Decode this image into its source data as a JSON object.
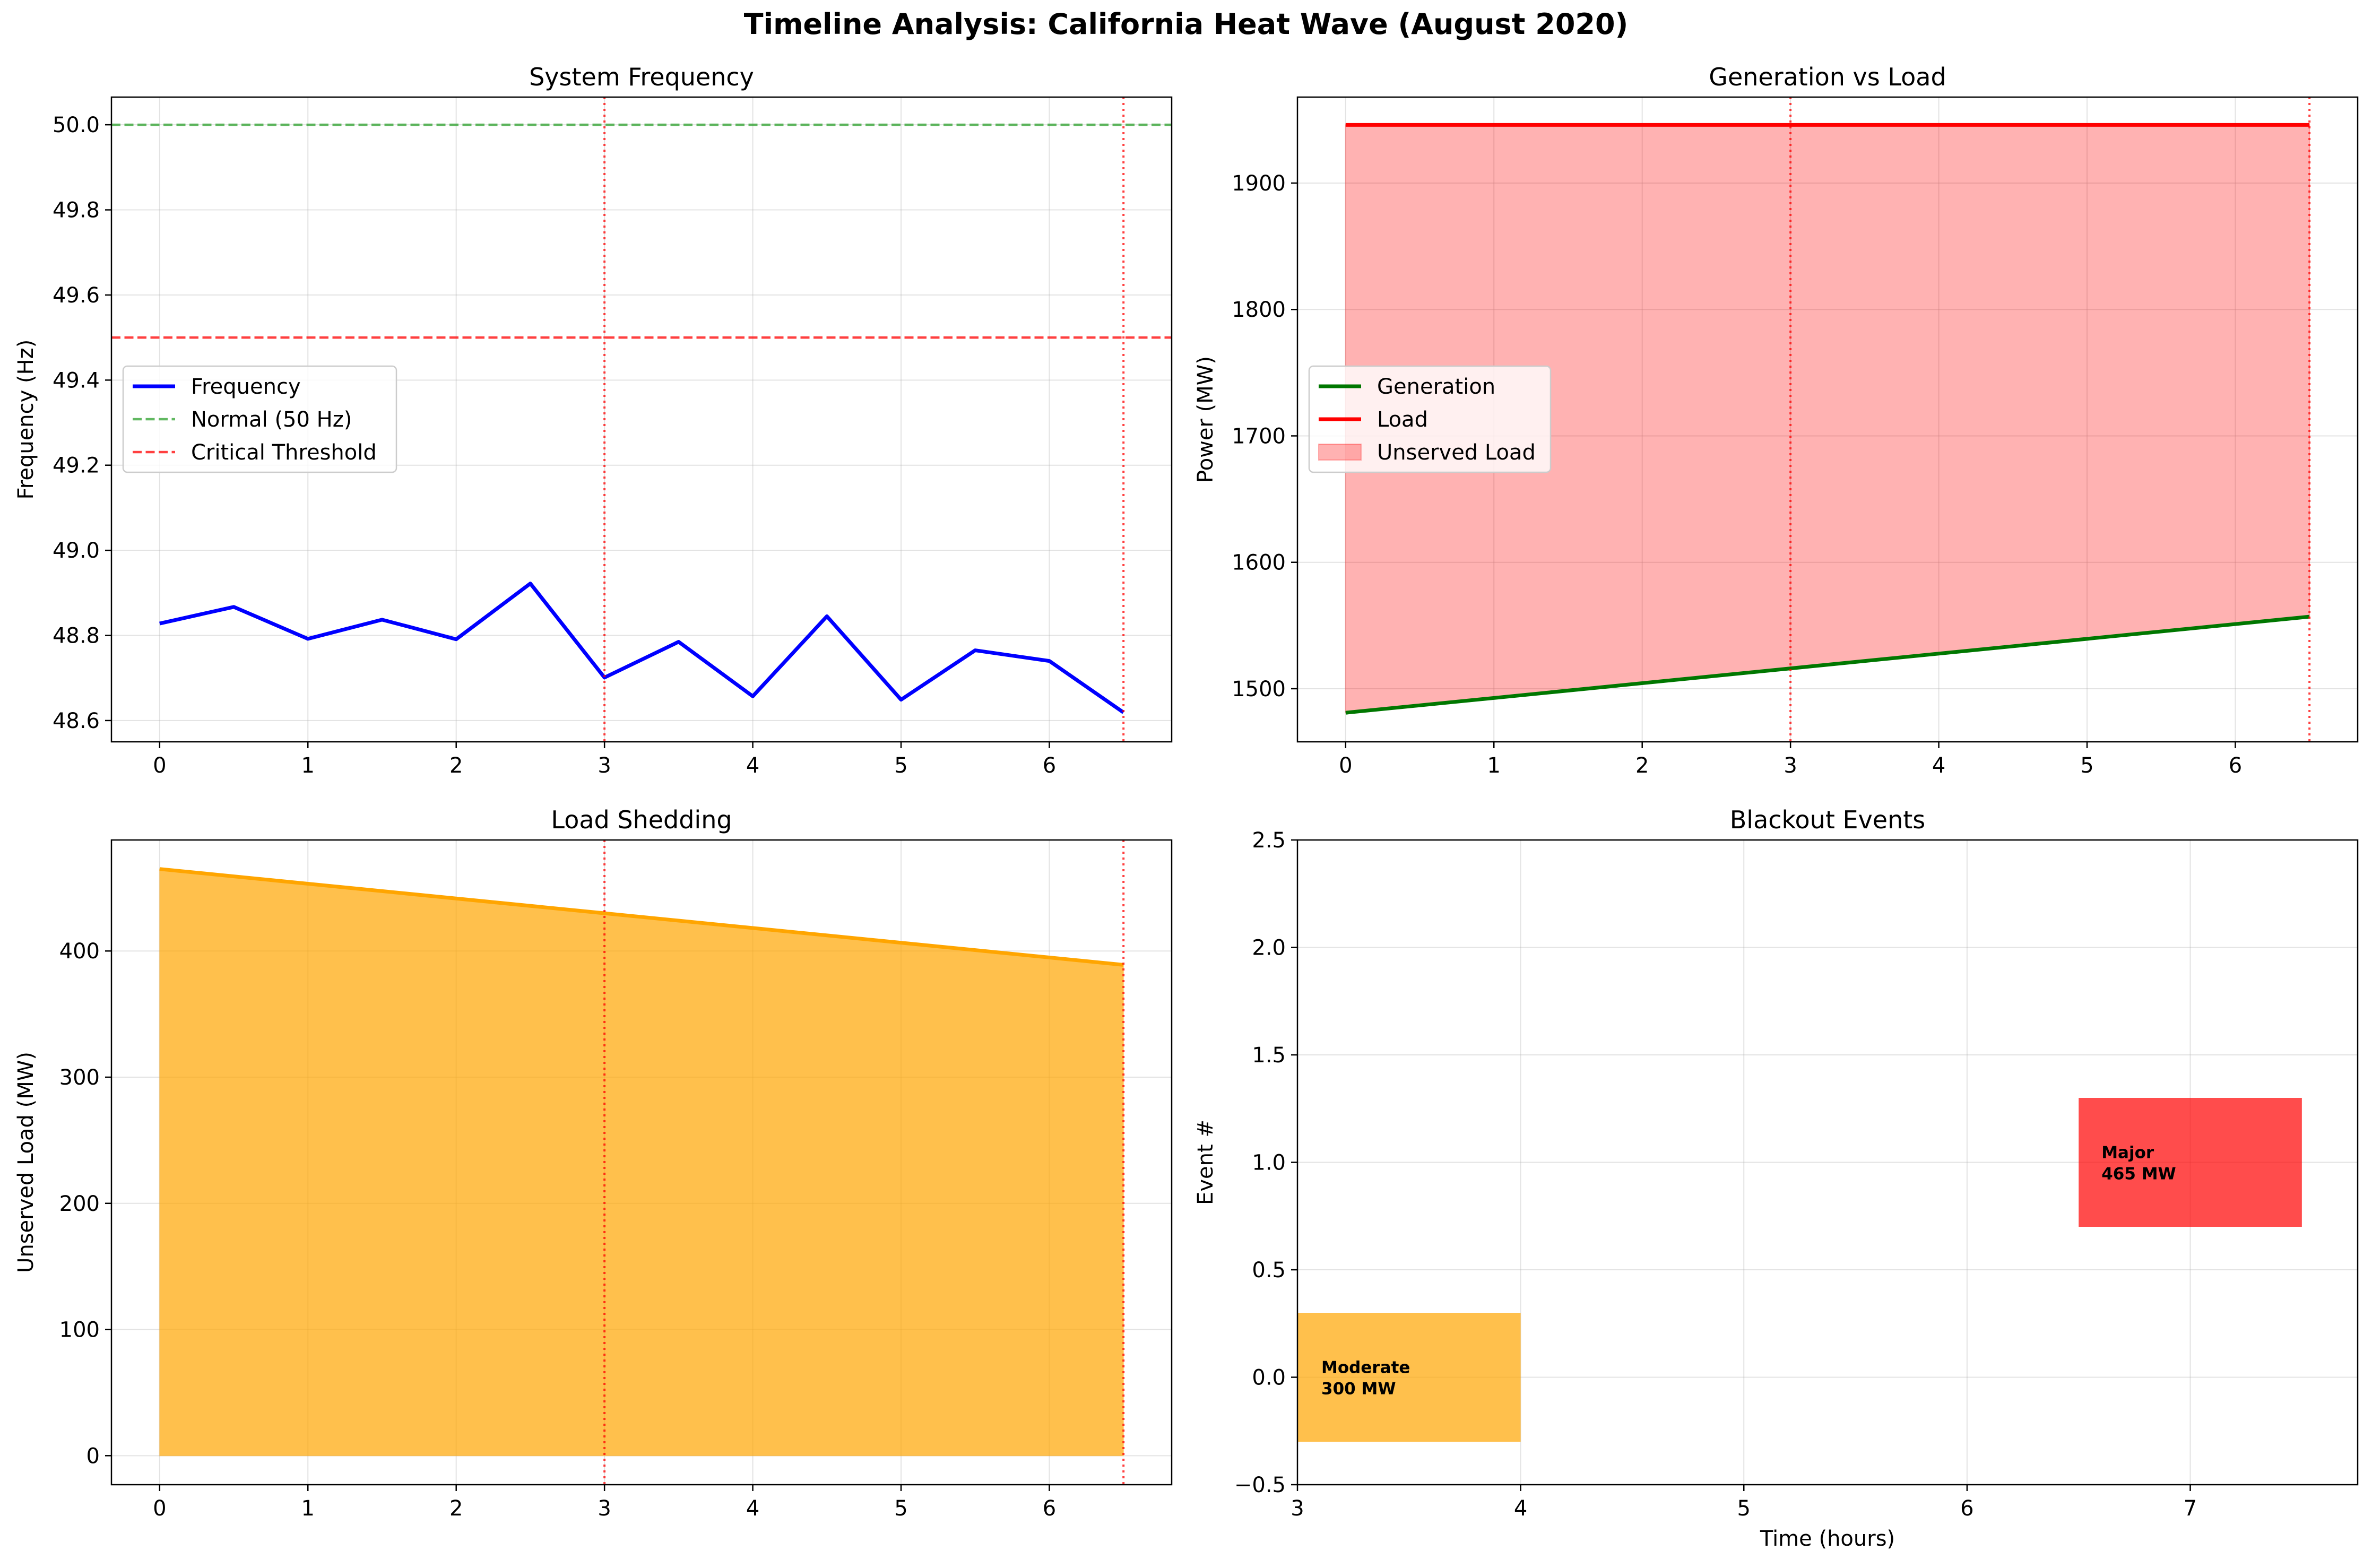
{
  "figure": {
    "title": "Timeline Analysis: California Heat Wave (August 2020)"
  },
  "chart_data": [
    {
      "type": "line",
      "title": "System Frequency",
      "xlabel": "",
      "ylabel": "Frequency (Hz)",
      "xlim": [
        -0.325,
        6.825
      ],
      "ylim": [
        48.55,
        50.065
      ],
      "xticks": [
        "0",
        "1",
        "2",
        "3",
        "4",
        "5",
        "6"
      ],
      "yticks": [
        "48.6",
        "48.8",
        "49.0",
        "49.2",
        "49.4",
        "49.6",
        "49.8",
        "50.0"
      ],
      "grid": true,
      "legend_position": "center-left",
      "x": [
        0,
        0.5,
        1,
        1.5,
        2,
        2.5,
        3,
        3.5,
        4,
        4.5,
        5,
        5.5,
        6,
        6.5
      ],
      "series": [
        {
          "name": "Frequency",
          "color": "#0000ff",
          "values": [
            48.828,
            48.867,
            48.792,
            48.837,
            48.791,
            48.922,
            48.701,
            48.785,
            48.657,
            48.845,
            48.649,
            48.765,
            48.74,
            48.619
          ]
        }
      ],
      "hlines": [
        {
          "name": "Normal (50 Hz)",
          "y": 50.0,
          "color": "#2ca02c",
          "style": "dashed"
        },
        {
          "name": "Critical Threshold",
          "y": 49.5,
          "color": "#ff0000",
          "style": "dashed"
        }
      ],
      "vlines": [
        {
          "x": 3,
          "color": "#ff0000"
        },
        {
          "x": 6.5,
          "color": "#ff0000"
        }
      ]
    },
    {
      "type": "line",
      "title": "Generation vs Load",
      "xlabel": "",
      "ylabel": "Power (MW)",
      "xlim": [
        -0.325,
        6.825
      ],
      "ylim": [
        1458,
        1968
      ],
      "xticks": [
        "0",
        "1",
        "2",
        "3",
        "4",
        "5",
        "6"
      ],
      "yticks": [
        "1500",
        "1600",
        "1700",
        "1800",
        "1900"
      ],
      "grid": true,
      "legend_position": "center-left",
      "x": [
        0,
        6.5
      ],
      "series": [
        {
          "name": "Generation",
          "color": "#007700",
          "values": [
            1481,
            1557
          ]
        },
        {
          "name": "Load",
          "color": "#ff0000",
          "values": [
            1946,
            1946
          ]
        }
      ],
      "fill_between": {
        "name": "Unserved Load",
        "color": "#ff0000",
        "opacity": 0.3,
        "lower": "Generation",
        "upper": "Load"
      },
      "vlines": [
        {
          "x": 3,
          "color": "#ff0000"
        },
        {
          "x": 6.5,
          "color": "#ff0000"
        }
      ]
    },
    {
      "type": "area",
      "title": "Load Shedding",
      "xlabel": "",
      "ylabel": "Unserved Load (MW)",
      "xlim": [
        -0.325,
        6.825
      ],
      "ylim": [
        -23,
        488
      ],
      "xticks": [
        "0",
        "1",
        "2",
        "3",
        "4",
        "5",
        "6"
      ],
      "yticks": [
        "0",
        "100",
        "200",
        "300",
        "400"
      ],
      "grid": true,
      "x": [
        0,
        6.5
      ],
      "series": [
        {
          "name": "",
          "color": "#ffa500",
          "values": [
            465,
            389
          ]
        }
      ],
      "vlines": [
        {
          "x": 3,
          "color": "#ff0000"
        },
        {
          "x": 6.5,
          "color": "#ff0000"
        }
      ]
    },
    {
      "type": "bar",
      "title": "Blackout Events",
      "xlabel": "Time (hours)",
      "ylabel": "Event #",
      "xlim": [
        3,
        7.75
      ],
      "ylim": [
        -0.5,
        2.5
      ],
      "xticks": [
        "3",
        "4",
        "5",
        "6",
        "7"
      ],
      "yticks": [
        "−0.5",
        "0.0",
        "0.5",
        "1.0",
        "1.5",
        "2.0",
        "2.5"
      ],
      "grid": true,
      "events": [
        {
          "start": 2.5,
          "end": 4.0,
          "event": 0,
          "severity": "Moderate",
          "mw_label": "300 MW",
          "color": "#ffa500",
          "opacity": 0.7
        },
        {
          "start": 6.5,
          "end": 7.5,
          "event": 1,
          "severity": "Major",
          "mw_label": "465 MW",
          "color": "#ff0000",
          "opacity": 0.7
        }
      ]
    }
  ]
}
